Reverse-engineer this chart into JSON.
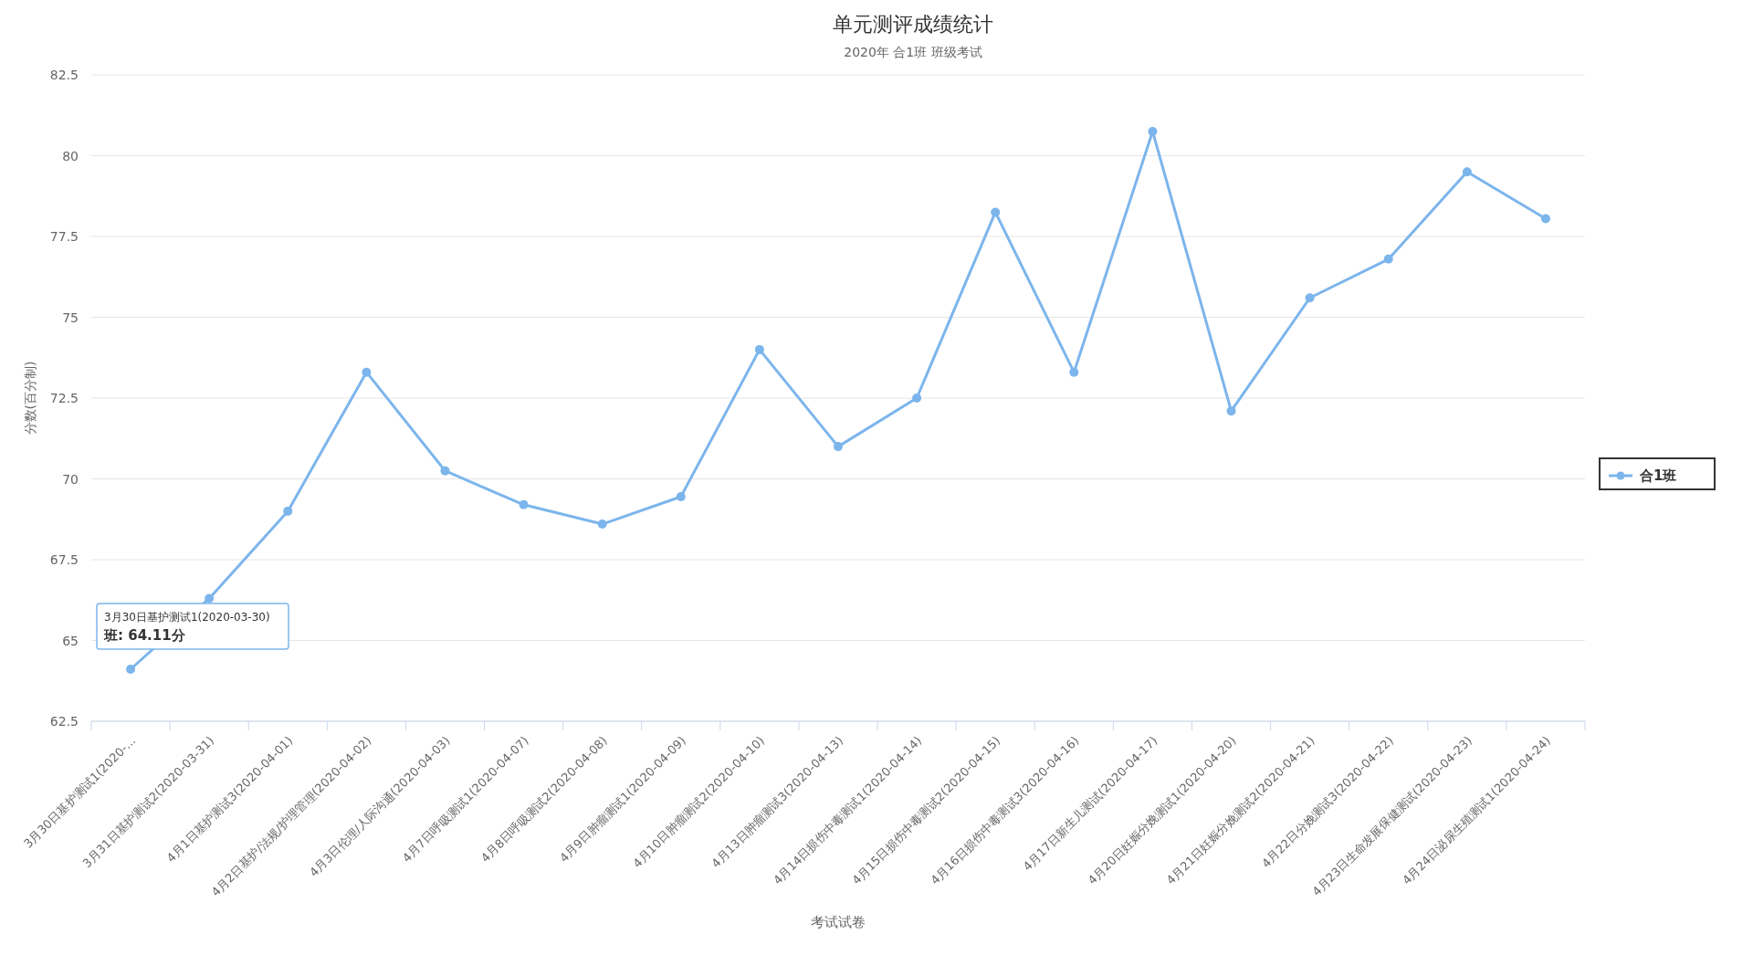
{
  "chart_data": {
    "type": "line",
    "title": "单元测评成绩统计",
    "subtitle": "2020年 合1班 班级考试",
    "xlabel": "考试试卷",
    "ylabel": "分数(百分制)",
    "categories": [
      "3月30日基护测试1(2020-...",
      "3月31日基护测试2(2020-03-31)",
      "4月1日基护测试3(2020-04-01)",
      "4月2日基护/法规/护理管理(2020-04-02)",
      "4月3日伦理/人际沟通(2020-04-03)",
      "4月7日呼吸测试1(2020-04-07)",
      "4月8日呼吸测试2(2020-04-08)",
      "4月9日肿瘤测试1(2020-04-09)",
      "4月10日肿瘤测试2(2020-04-10)",
      "4月13日肿瘤测试3(2020-04-13)",
      "4月14日损伤中毒测试1(2020-04-14)",
      "4月15日损伤中毒测试2(2020-04-15)",
      "4月16日损伤中毒测试3(2020-04-16)",
      "4月17日新生儿测试(2020-04-17)",
      "4月20日妊娠分娩测试1(2020-04-20)",
      "4月21日妊娠分娩测试2(2020-04-21)",
      "4月22日分娩测试3(2020-04-22)",
      "4月23日生命发展保健测试(2020-04-23)",
      "4月24日泌尿生殖测试1(2020-04-24)"
    ],
    "series": [
      {
        "name": "合1班",
        "color": "#7cb5ec",
        "values": [
          64.11,
          66.3,
          69.0,
          73.3,
          70.25,
          69.2,
          68.6,
          69.45,
          74.0,
          71.0,
          72.5,
          78.25,
          73.3,
          80.75,
          72.1,
          75.6,
          76.8,
          79.5,
          78.05
        ]
      }
    ],
    "ylim": [
      62.5,
      82.5
    ],
    "yticks": [
      62.5,
      65,
      67.5,
      70,
      72.5,
      75,
      77.5,
      80,
      82.5
    ],
    "grid": "y",
    "legend": "right",
    "marker": "circle",
    "line_style": "solid",
    "annotations": [
      {
        "text": "3月30日基护测试1(2020-03-30)\n班: 64.11分",
        "x": "3月30日基护测试1(2020-...",
        "y": 64.11
      }
    ]
  }
}
